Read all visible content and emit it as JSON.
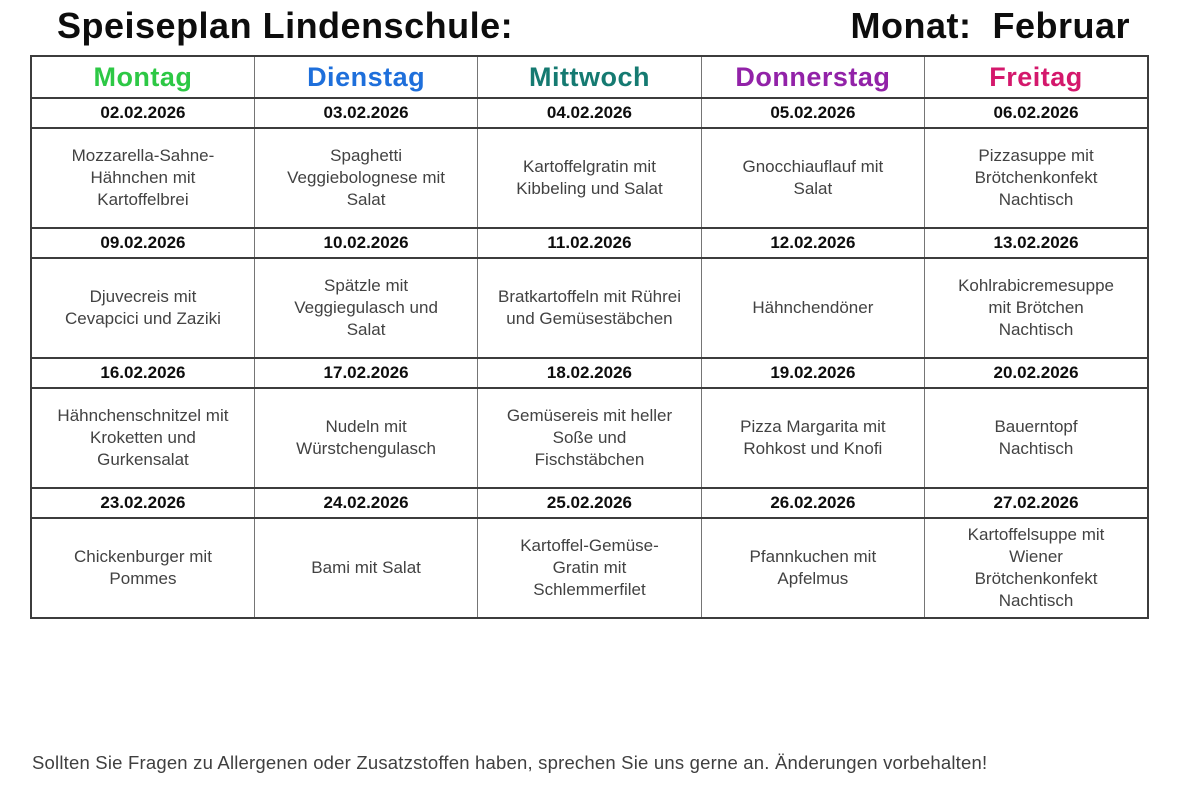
{
  "header": {
    "title": "Speiseplan Lindenschule:",
    "month_label": "Monat:  Februar"
  },
  "table": {
    "days": [
      {
        "label": "Montag",
        "color": "#2DC845"
      },
      {
        "label": "Dienstag",
        "color": "#1E6FDB"
      },
      {
        "label": "Mittwoch",
        "color": "#157A71"
      },
      {
        "label": "Donnerstag",
        "color": "#9222A8"
      },
      {
        "label": "Freitag",
        "color": "#D4186C"
      }
    ],
    "weeks": [
      {
        "dates": [
          "02.02.2026",
          "03.02.2026",
          "04.02.2026",
          "05.02.2026",
          "06.02.2026"
        ],
        "meals": [
          "Mozzarella-Sahne-\nHähnchen mit\nKartoffelbrei",
          "Spaghetti\nVeggiebolognese mit\nSalat",
          "Kartoffelgratin mit\nKibbeling und Salat",
          "Gnocchiauflauf mit\nSalat",
          "Pizzasuppe mit\nBrötchenkonfekt\nNachtisch"
        ]
      },
      {
        "dates": [
          "09.02.2026",
          "10.02.2026",
          "11.02.2026",
          "12.02.2026",
          "13.02.2026"
        ],
        "meals": [
          "Djuvecreis mit\nCevapcici und Zaziki",
          "Spätzle mit\nVeggiegulasch und\nSalat",
          "Bratkartoffeln mit Rührei\nund Gemüsestäbchen",
          "Hähnchendöner",
          "Kohlrabicremesuppe\nmit Brötchen\nNachtisch"
        ]
      },
      {
        "dates": [
          "16.02.2026",
          "17.02.2026",
          "18.02.2026",
          "19.02.2026",
          "20.02.2026"
        ],
        "meals": [
          "Hähnchenschnitzel mit\nKroketten und\nGurkensalat",
          "Nudeln mit\nWürstchengulasch",
          "Gemüsereis mit heller\nSoße und\nFischstäbchen",
          "Pizza Margarita mit\nRohkost und Knofi",
          "Bauerntopf\nNachtisch"
        ]
      },
      {
        "dates": [
          "23.02.2026",
          "24.02.2026",
          "25.02.2026",
          "26.02.2026",
          "27.02.2026"
        ],
        "meals": [
          "Chickenburger mit\nPommes",
          "Bami mit Salat",
          "Kartoffel-Gemüse-\nGratin mit\nSchlemmerfilet",
          "Pfannkuchen mit\nApfelmus",
          "Kartoffelsuppe mit\nWiener\nBrötchenkonfekt\nNachtisch"
        ]
      }
    ]
  },
  "footer": {
    "note": "Sollten Sie Fragen zu Allergenen oder Zusatzstoffen haben, sprechen Sie uns gerne an. Änderungen vorbehalten!"
  }
}
